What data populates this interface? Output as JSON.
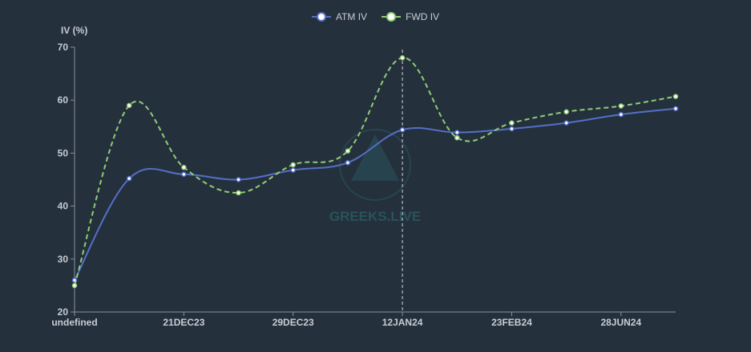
{
  "chart_data": {
    "type": "line",
    "title": "",
    "ylabel": "IV (%)",
    "xlabel": "",
    "ylim": [
      20,
      70
    ],
    "yticks": [
      20,
      30,
      40,
      50,
      60,
      70
    ],
    "grid": false,
    "legend_position": "top-center",
    "x_tick_labels": [
      "undefined",
      "21DEC23",
      "29DEC23",
      "12JAN24",
      "23FEB24",
      "28JUN24"
    ],
    "x_tick_indices": [
      0,
      2,
      4,
      6,
      8,
      10
    ],
    "highlight_index": 6,
    "point_count": 12,
    "series": [
      {
        "name": "ATM IV",
        "color": "#5470c6",
        "dashed": false,
        "values": [
          26.0,
          45.2,
          46.0,
          45.0,
          46.8,
          48.2,
          54.4,
          53.9,
          54.6,
          55.7,
          57.3,
          58.4
        ]
      },
      {
        "name": "FWD IV",
        "color": "#91cc75",
        "dashed": true,
        "values": [
          25.0,
          59.0,
          47.3,
          42.5,
          47.8,
          50.4,
          68.0,
          52.9,
          55.7,
          57.8,
          58.9,
          60.7
        ]
      }
    ]
  },
  "watermark": {
    "text": "GREEKS.LIVE"
  },
  "colors": {
    "background": "#25303d",
    "axis": "#8a929c",
    "text": "#c8ccd2"
  }
}
